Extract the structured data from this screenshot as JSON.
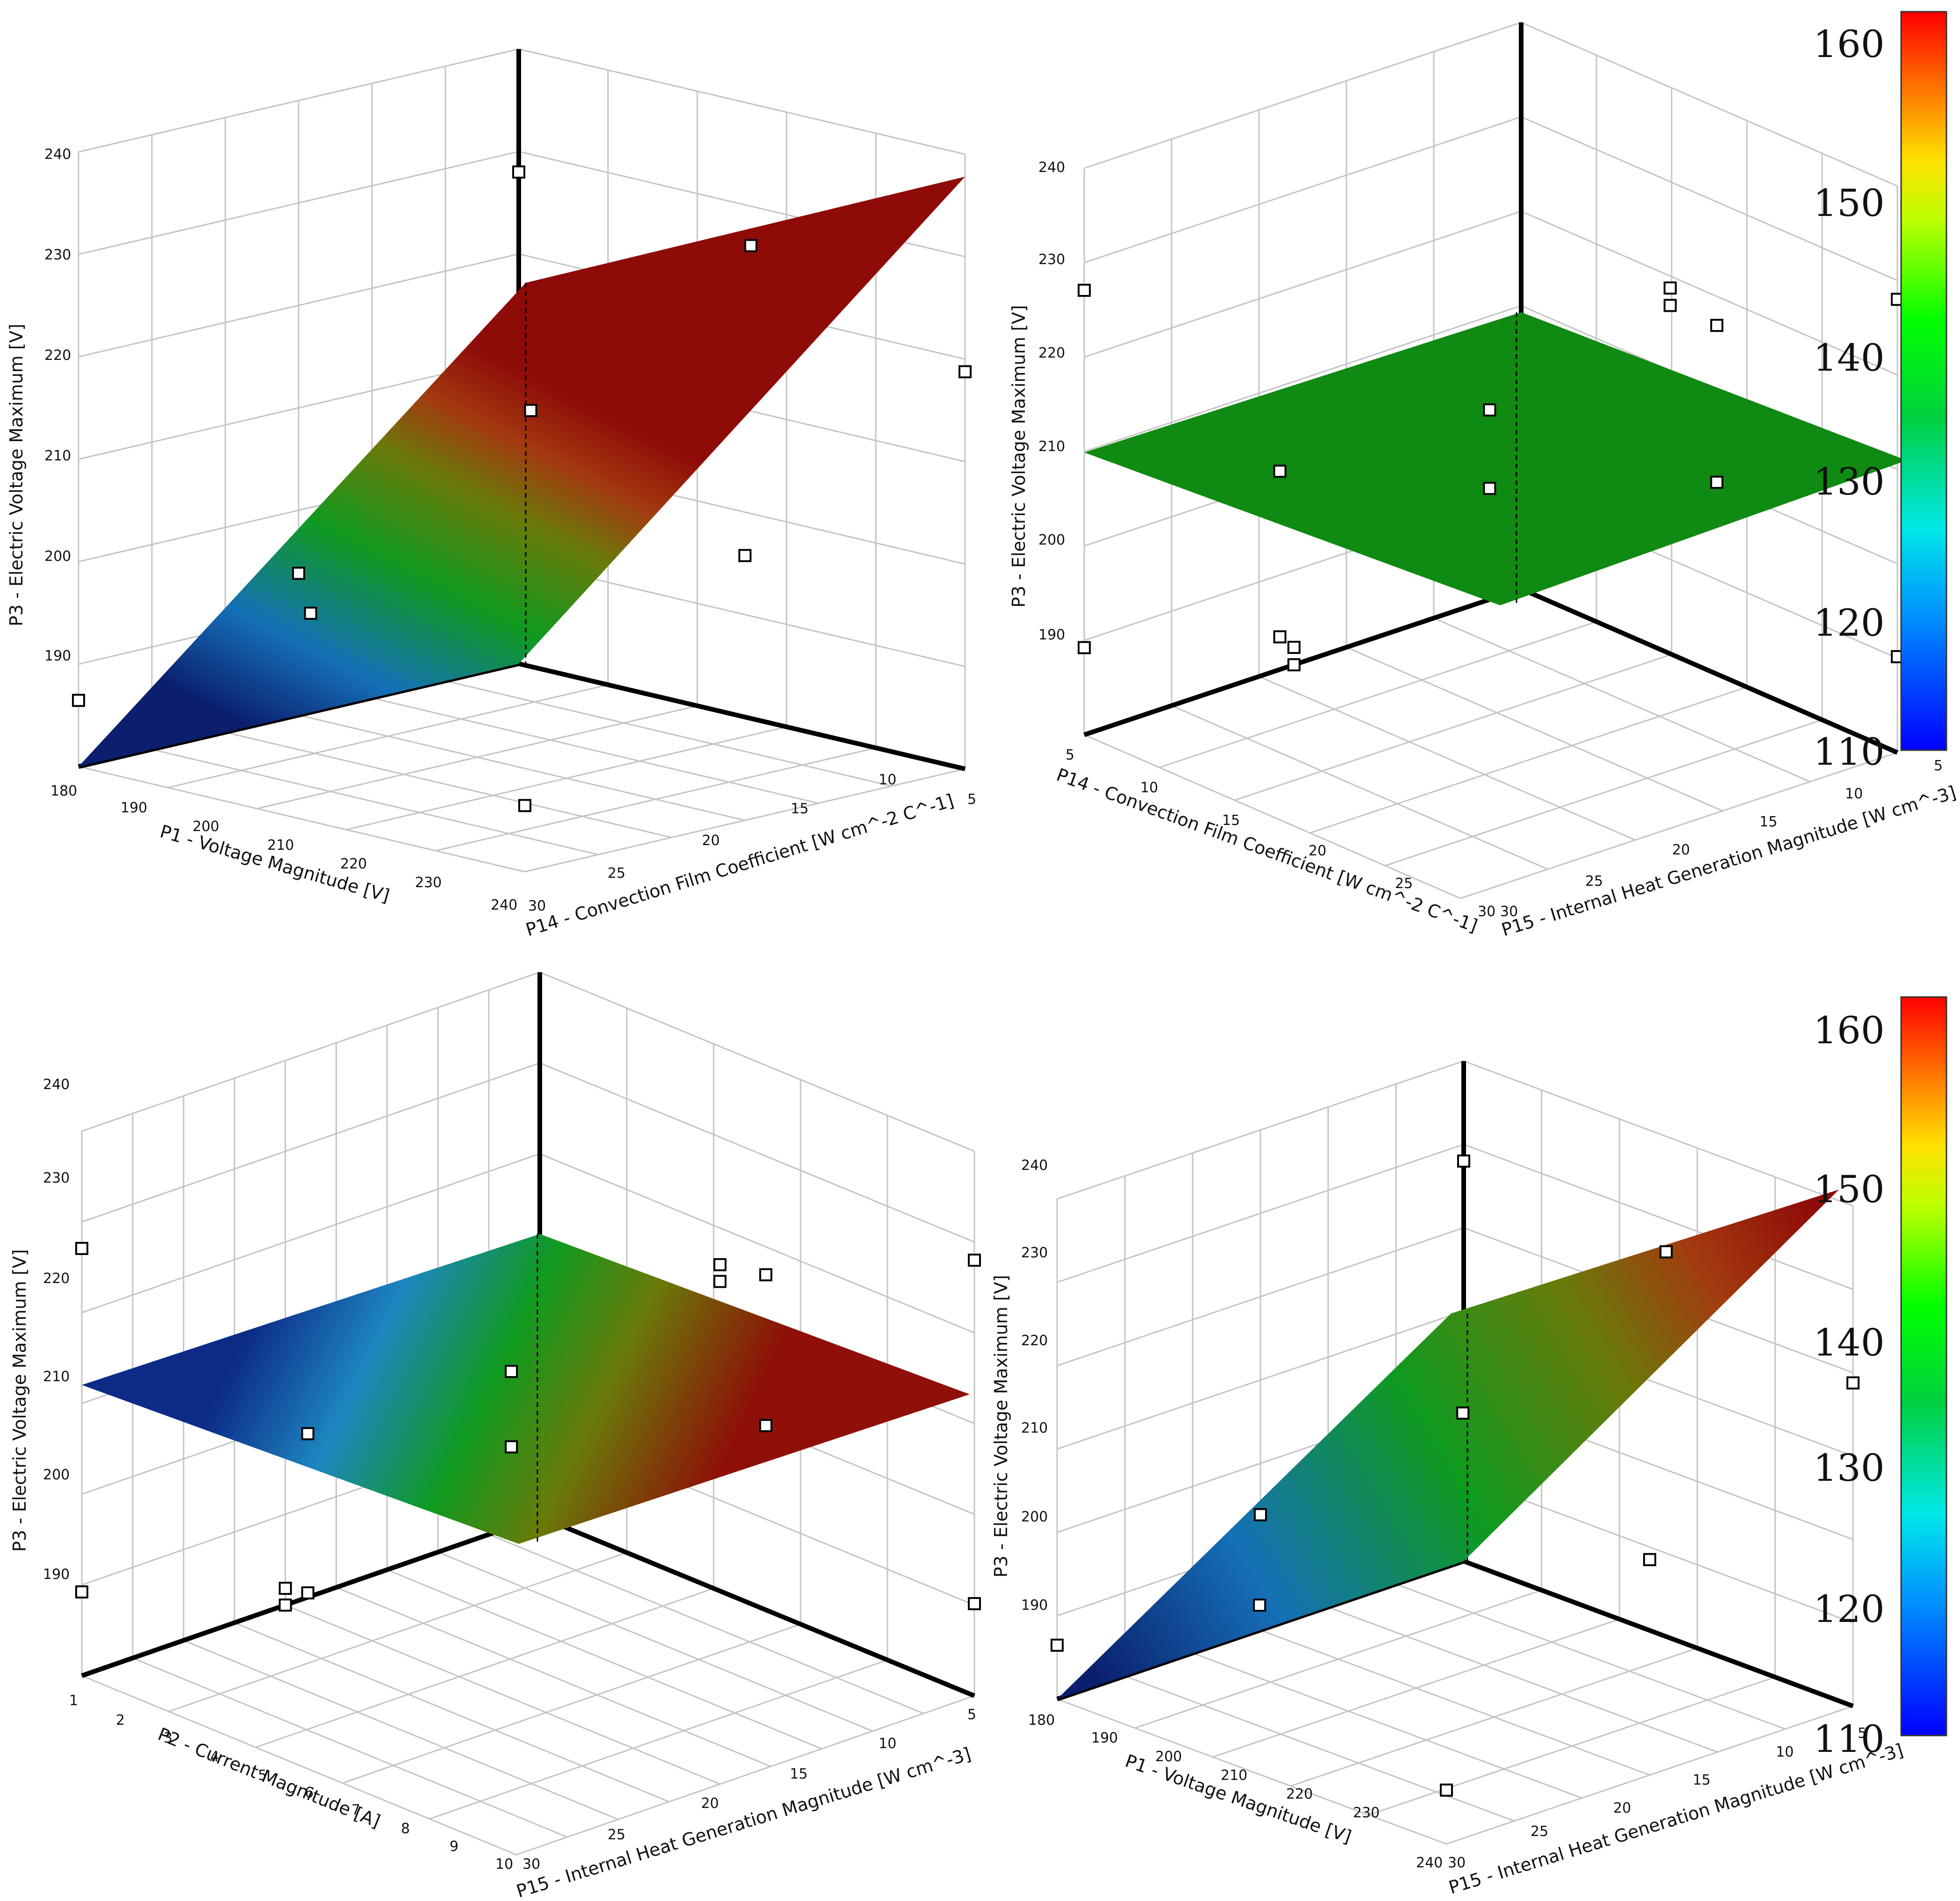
{
  "colors": {
    "grid": "#c4c4c4",
    "axis": "#000000",
    "plane_flat": "#0f8a12",
    "colormap": [
      "#0000ff",
      "#0070ff",
      "#00d8ff",
      "#00ff80",
      "#00ff00",
      "#a0ff00",
      "#ffff00",
      "#ffa000",
      "#ff4000",
      "#ff0000"
    ]
  },
  "colorbars": [
    {
      "ticks": [
        "160",
        "150",
        "140",
        "130",
        "120",
        "110"
      ],
      "min": 110,
      "max": 163
    },
    {
      "ticks": [
        "160",
        "150",
        "140",
        "130",
        "120",
        "110"
      ],
      "min": 110,
      "max": 163
    }
  ],
  "chart_data": [
    {
      "type": "surface3d",
      "title": "",
      "xlabel": "P1 - Voltage Magnitude  [V]",
      "ylabel": "P14 - Convection Film Coefficient  [W cm^-2 C^-1]",
      "zlabel": "P3 - Electric Voltage Maximum  [V]",
      "x_ticks": [
        "180",
        "190",
        "200",
        "210",
        "220",
        "230",
        "240"
      ],
      "y_ticks": [
        "30",
        "25",
        "20",
        "15",
        "10",
        "5"
      ],
      "z_ticks": [
        "190",
        "200",
        "210",
        "220",
        "230",
        "240"
      ],
      "xlim": [
        180,
        240
      ],
      "ylim": [
        5,
        30
      ],
      "zlim": [
        180,
        245
      ],
      "surface": "z = x (independent of P14)",
      "corners": [
        [
          180,
          30,
          180
        ],
        [
          240,
          30,
          240
        ],
        [
          240,
          5,
          240
        ],
        [
          180,
          5,
          180
        ]
      ],
      "points": [
        [
          180,
          30,
          187
        ],
        [
          210,
          30,
          195
        ],
        [
          240,
          30,
          232
        ],
        [
          180,
          17,
          202
        ],
        [
          210,
          17,
          218
        ],
        [
          240,
          17,
          230
        ],
        [
          180,
          5,
          187
        ],
        [
          210,
          5,
          208
        ],
        [
          240,
          5,
          222
        ]
      ]
    },
    {
      "type": "surface3d",
      "title": "",
      "xlabel": "P14 - Convection Film Coefficient  [W cm^-2 C^-1]",
      "ylabel": "P15 - Internal Heat Generation Magnitude  [W cm^-3]",
      "zlabel": "P3 - Electric Voltage Maximum  [V]",
      "x_ticks": [
        "5",
        "10",
        "15",
        "20",
        "25",
        "30"
      ],
      "y_ticks": [
        "30",
        "25",
        "20",
        "15",
        "10",
        "5"
      ],
      "z_ticks": [
        "190",
        "200",
        "210",
        "220",
        "230",
        "240"
      ],
      "xlim": [
        5,
        30
      ],
      "ylim": [
        5,
        30
      ],
      "zlim": [
        180,
        245
      ],
      "surface": "z = 210 (flat)",
      "corners": [
        [
          5,
          30,
          210
        ],
        [
          30,
          30,
          210
        ],
        [
          30,
          5,
          210
        ],
        [
          5,
          5,
          210
        ]
      ],
      "points": [
        [
          5,
          30,
          190
        ],
        [
          5,
          30,
          231
        ],
        [
          5,
          17,
          201
        ],
        [
          5,
          17,
          220
        ],
        [
          17,
          30,
          180
        ],
        [
          17,
          30,
          182
        ],
        [
          17,
          17,
          210
        ],
        [
          17,
          17,
          219
        ],
        [
          17,
          5,
          240
        ],
        [
          17,
          5,
          242
        ],
        [
          30,
          17,
          202
        ],
        [
          30,
          17,
          220
        ],
        [
          30,
          5,
          191
        ],
        [
          30,
          5,
          232
        ]
      ]
    },
    {
      "type": "surface3d",
      "title": "",
      "xlabel": "P2 - Current Magnitude  [A]",
      "ylabel": "P15 - Internal Heat Generation Magnitude  [W cm^-3]",
      "zlabel": "P3 - Electric Voltage Maximum  [V]",
      "x_ticks": [
        "1",
        "2",
        "3",
        "4",
        "5",
        "6",
        "7",
        "8",
        "9",
        "10"
      ],
      "y_ticks": [
        "30",
        "25",
        "20",
        "15",
        "10",
        "5"
      ],
      "z_ticks": [
        "190",
        "200",
        "210",
        "220",
        "230",
        "240"
      ],
      "xlim": [
        1,
        10
      ],
      "ylim": [
        5,
        30
      ],
      "zlim": [
        180,
        245
      ],
      "surface": "z = 210 (flat)",
      "corners": [
        [
          1,
          30,
          210
        ],
        [
          10,
          30,
          210
        ],
        [
          10,
          5,
          210
        ],
        [
          1,
          5,
          210
        ]
      ],
      "points": [
        [
          1,
          30,
          190
        ],
        [
          1,
          30,
          231
        ],
        [
          1,
          17,
          201
        ],
        [
          1,
          17,
          220
        ],
        [
          5,
          30,
          180
        ],
        [
          5,
          30,
          182
        ],
        [
          5,
          17,
          210
        ],
        [
          5,
          17,
          219
        ],
        [
          5,
          5,
          240
        ],
        [
          5,
          5,
          242
        ],
        [
          10,
          17,
          202
        ],
        [
          10,
          17,
          220
        ],
        [
          10,
          5,
          191
        ],
        [
          10,
          5,
          232
        ]
      ]
    },
    {
      "type": "surface3d",
      "title": "",
      "xlabel": "P1 - Voltage Magnitude  [V]",
      "ylabel": "P15 - Internal Heat Generation Magnitude  [W cm^-3]",
      "zlabel": "P3 - Electric Voltage Maximum  [V]",
      "x_ticks": [
        "180",
        "190",
        "200",
        "210",
        "220",
        "230",
        "240"
      ],
      "y_ticks": [
        "30",
        "25",
        "20",
        "15",
        "10",
        "5"
      ],
      "z_ticks": [
        "190",
        "200",
        "210",
        "220",
        "230",
        "240"
      ],
      "xlim": [
        180,
        240
      ],
      "ylim": [
        5,
        30
      ],
      "zlim": [
        180,
        245
      ],
      "surface": "z = x (independent of P15)",
      "corners": [
        [
          180,
          30,
          180
        ],
        [
          240,
          30,
          240
        ],
        [
          240,
          5,
          240
        ],
        [
          180,
          5,
          180
        ]
      ],
      "points": [
        [
          180,
          30,
          187
        ],
        [
          210,
          30,
          195
        ],
        [
          240,
          30,
          232
        ],
        [
          180,
          17,
          202
        ],
        [
          210,
          17,
          218
        ],
        [
          240,
          17,
          230
        ],
        [
          180,
          5,
          187
        ],
        [
          210,
          5,
          208
        ],
        [
          240,
          5,
          222
        ]
      ]
    }
  ]
}
